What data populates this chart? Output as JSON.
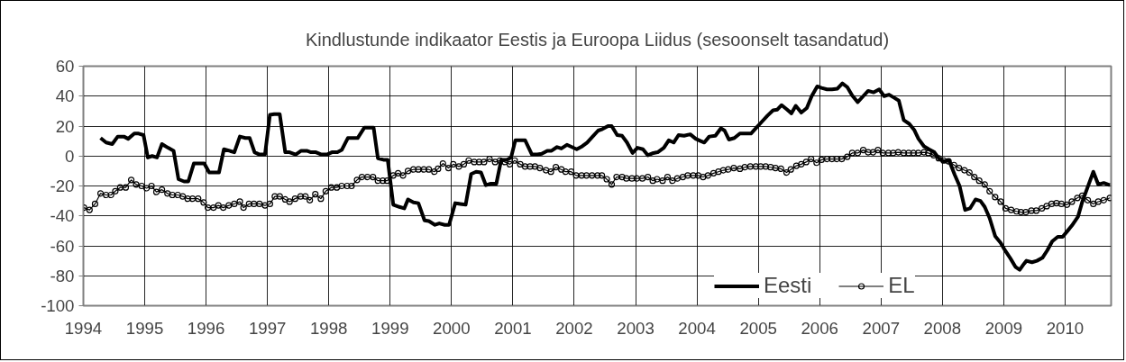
{
  "chart_data": {
    "type": "line",
    "title": "Kindlustunde indikaator Eestis ja Euroopa Liidus (sesoonselt tasandatud)",
    "xlim": [
      1994,
      2010.75
    ],
    "xticks": [
      1994,
      1995,
      1996,
      1997,
      1998,
      1999,
      2000,
      2001,
      2002,
      2003,
      2004,
      2005,
      2006,
      2007,
      2008,
      2009,
      2010
    ],
    "ylim": [
      -100,
      60
    ],
    "yticks": [
      -100,
      -80,
      -60,
      -40,
      -20,
      0,
      20,
      40,
      60
    ],
    "grid": true,
    "legend": "bottom right",
    "series": [
      {
        "name": "Eesti",
        "color": "#000000",
        "marker": "none",
        "x": [
          1994.28,
          1994.37,
          1994.47,
          1994.56,
          1994.66,
          1994.73,
          1994.83,
          1994.9,
          1994.98,
          1995.05,
          1995.12,
          1995.2,
          1995.28,
          1995.38,
          1995.47,
          1995.55,
          1995.64,
          1995.71,
          1995.8,
          1995.9,
          1995.97,
          1996.05,
          1996.13,
          1996.21,
          1996.29,
          1996.38,
          1996.46,
          1996.55,
          1996.64,
          1996.71,
          1996.79,
          1996.87,
          1996.96,
          1997.04,
          1997.11,
          1997.2,
          1997.29,
          1997.36,
          1997.46,
          1997.55,
          1997.64,
          1997.71,
          1997.79,
          1997.88,
          1997.97,
          1998.05,
          1998.14,
          1998.21,
          1998.31,
          1998.38,
          1998.47,
          1998.58,
          1998.66,
          1998.73,
          1998.8,
          1998.89,
          1998.96,
          1999.05,
          1999.15,
          1999.23,
          1999.29,
          1999.38,
          1999.46,
          1999.56,
          1999.63,
          1999.73,
          1999.8,
          1999.89,
          1999.96,
          2000.06,
          2000.14,
          2000.23,
          2000.32,
          2000.4,
          2000.48,
          2000.56,
          2000.64,
          2000.73,
          2000.81,
          2000.9,
          2000.97,
          2001.04,
          2001.12,
          2001.2,
          2001.31,
          2001.4,
          2001.47,
          2001.56,
          2001.63,
          2001.72,
          2001.79,
          2001.88,
          2001.96,
          2002.04,
          2002.13,
          2002.21,
          2002.3,
          2002.39,
          2002.46,
          2002.55,
          2002.61,
          2002.7,
          2002.78,
          2002.86,
          2002.95,
          2003.03,
          2003.12,
          2003.2,
          2003.29,
          2003.36,
          2003.46,
          2003.54,
          2003.62,
          2003.7,
          2003.79,
          2003.89,
          2003.98,
          2004.06,
          2004.12,
          2004.2,
          2004.3,
          2004.39,
          2004.45,
          2004.52,
          2004.61,
          2004.7,
          2004.79,
          2004.88,
          2004.97,
          2005.06,
          2005.15,
          2005.24,
          2005.31,
          2005.38,
          2005.47,
          2005.54,
          2005.61,
          2005.7,
          2005.79,
          2005.87,
          2005.96,
          2006.03,
          2006.12,
          2006.2,
          2006.29,
          2006.37,
          2006.45,
          2006.53,
          2006.62,
          2006.71,
          2006.79,
          2006.88,
          2006.97,
          2007.05,
          2007.13,
          2007.21,
          2007.29,
          2007.37,
          2007.46,
          2007.54,
          2007.61,
          2007.7,
          2007.78,
          2007.87,
          2007.95,
          2008.02,
          2008.11,
          2008.2,
          2008.28,
          2008.37,
          2008.45,
          2008.54,
          2008.62,
          2008.69,
          2008.77,
          2008.86,
          2008.95,
          2009.02,
          2009.11,
          2009.19,
          2009.26,
          2009.33,
          2009.37,
          2009.46,
          2009.54,
          2009.63,
          2009.71,
          2009.79,
          2009.88,
          2009.96,
          2010.04,
          2010.11,
          2010.21,
          2010.28,
          2010.37,
          2010.46,
          2010.54,
          2010.63,
          2010.73
        ],
        "values": [
          12,
          9,
          8,
          13,
          13,
          11.5,
          15,
          15,
          14,
          -1,
          0,
          -1,
          8,
          5.5,
          3.5,
          -15.5,
          -17,
          -17,
          -5,
          -5,
          -5,
          -11,
          -11,
          -11,
          4.5,
          3.5,
          2.5,
          13,
          12,
          12,
          2.5,
          1,
          1,
          27.5,
          28,
          28,
          2.5,
          2.5,
          1,
          3.5,
          3.5,
          2.5,
          2.5,
          1,
          1,
          2.5,
          2.5,
          4,
          12,
          12,
          12,
          19,
          19,
          19,
          -1.5,
          -2.5,
          -2.5,
          -32.5,
          -34,
          -35,
          -29,
          -31,
          -31.5,
          -43,
          -43.5,
          -46,
          -45,
          -46,
          -46,
          -31.5,
          -32,
          -32.5,
          -12,
          -10.5,
          -11,
          -19.5,
          -18.5,
          -18.5,
          -2.5,
          -2.5,
          -1,
          10.5,
          10.5,
          10.5,
          1,
          1,
          1.5,
          3.5,
          3.5,
          6,
          5,
          7.5,
          6,
          4.5,
          6.5,
          9,
          13,
          17,
          18,
          20,
          20,
          14,
          13.5,
          9,
          2,
          5.5,
          4.5,
          0.5,
          2,
          2.5,
          5.5,
          10.5,
          9,
          14,
          13.5,
          14.5,
          11.5,
          10,
          9,
          13,
          13.5,
          18.5,
          17,
          11,
          12,
          15,
          15,
          15,
          19,
          23,
          27,
          30.5,
          31,
          34,
          31,
          28.5,
          33.5,
          29,
          32,
          40,
          46.5,
          45.5,
          44.5,
          44.5,
          45,
          48.5,
          46,
          40.5,
          36,
          40,
          43.5,
          42.5,
          44.5,
          40,
          41,
          39,
          37,
          24,
          21.5,
          17.5,
          11.5,
          6.5,
          4.5,
          2.5,
          -2,
          -3.5,
          -3,
          -12.5,
          -20,
          -36,
          -35,
          -29,
          -30,
          -34,
          -41.5,
          -53.5,
          -58,
          -63,
          -68.5,
          -74,
          -76,
          -72,
          -70,
          -71,
          -70,
          -68,
          -63,
          -57,
          -54,
          -54,
          -50,
          -46.5,
          -40.5,
          -30.5,
          -20.5,
          -10.5,
          -19,
          -18,
          -19.5
        ]
      },
      {
        "name": "EL",
        "color": "#000000",
        "marker": "circle",
        "x": [
          1994.01,
          1994.1,
          1994.19,
          1994.28,
          1994.37,
          1994.45,
          1994.52,
          1994.6,
          1994.69,
          1994.78,
          1994.86,
          1994.95,
          1995.03,
          1995.11,
          1995.19,
          1995.28,
          1995.37,
          1995.45,
          1995.54,
          1995.62,
          1995.7,
          1995.78,
          1995.87,
          1995.96,
          1996.03,
          1996.12,
          1996.2,
          1996.28,
          1996.37,
          1996.46,
          1996.55,
          1996.61,
          1996.7,
          1996.78,
          1996.87,
          1996.96,
          1997.04,
          1997.12,
          1997.2,
          1997.29,
          1997.36,
          1997.45,
          1997.54,
          1997.62,
          1997.69,
          1997.78,
          1997.87,
          1997.95,
          1998.04,
          1998.13,
          1998.21,
          1998.3,
          1998.37,
          1998.46,
          1998.54,
          1998.63,
          1998.72,
          1998.8,
          1998.88,
          1998.95,
          1999.05,
          1999.13,
          1999.21,
          1999.29,
          1999.38,
          1999.46,
          1999.55,
          1999.63,
          1999.72,
          1999.78,
          1999.86,
          1999.95,
          2000.03,
          2000.12,
          2000.2,
          2000.28,
          2000.37,
          2000.45,
          2000.53,
          2000.62,
          2000.71,
          2000.79,
          2000.87,
          2000.95,
          2001.03,
          2001.12,
          2001.2,
          2001.28,
          2001.36,
          2001.44,
          2001.54,
          2001.62,
          2001.7,
          2001.79,
          2001.86,
          2001.95,
          2002.03,
          2002.12,
          2002.2,
          2002.29,
          2002.38,
          2002.45,
          2002.53,
          2002.61,
          2002.69,
          2002.78,
          2002.85,
          2002.94,
          2003.02,
          2003.11,
          2003.2,
          2003.28,
          2003.35,
          2003.44,
          2003.52,
          2003.6,
          2003.68,
          2003.77,
          2003.85,
          2003.94,
          2004.02,
          2004.1,
          2004.18,
          2004.27,
          2004.35,
          2004.43,
          2004.51,
          2004.6,
          2004.7,
          2004.78,
          2004.87,
          2004.96,
          2005.04,
          2005.12,
          2005.2,
          2005.28,
          2005.37,
          2005.46,
          2005.53,
          2005.62,
          2005.7,
          2005.78,
          2005.86,
          2005.95,
          2006.03,
          2006.12,
          2006.2,
          2006.28,
          2006.36,
          2006.45,
          2006.53,
          2006.62,
          2006.71,
          2006.79,
          2006.87,
          2006.95,
          2007.03,
          2007.12,
          2007.2,
          2007.28,
          2007.37,
          2007.45,
          2007.53,
          2007.61,
          2007.7,
          2007.77,
          2007.86,
          2007.94,
          2008.02,
          2008.1,
          2008.19,
          2008.27,
          2008.36,
          2008.44,
          2008.52,
          2008.6,
          2008.69,
          2008.77,
          2008.86,
          2008.95,
          2009.03,
          2009.12,
          2009.21,
          2009.28,
          2009.36,
          2009.45,
          2009.53,
          2009.62,
          2009.7,
          2009.78,
          2009.86,
          2009.94,
          2010.03,
          2010.11,
          2010.2,
          2010.28,
          2010.37,
          2010.46,
          2010.54,
          2010.63,
          2010.73
        ],
        "values": [
          -34.5,
          -36,
          -32,
          -25,
          -26,
          -26,
          -23.5,
          -21,
          -21,
          -16,
          -19,
          -20,
          -21.5,
          -20,
          -24,
          -22.5,
          -25,
          -26,
          -26,
          -27,
          -28.5,
          -28.5,
          -28.5,
          -31,
          -34.5,
          -34.5,
          -33,
          -34.5,
          -33,
          -32,
          -30.5,
          -34.5,
          -32,
          -32,
          -32,
          -33,
          -32,
          -27,
          -27,
          -29,
          -30.5,
          -28.5,
          -27,
          -27,
          -29.5,
          -25.5,
          -28.5,
          -23.5,
          -21,
          -21,
          -20,
          -20,
          -20,
          -16,
          -14,
          -14,
          -14,
          -16.5,
          -16.5,
          -16.5,
          -13,
          -11.5,
          -13,
          -10,
          -9,
          -9,
          -9,
          -9,
          -10.5,
          -8.5,
          -5,
          -8,
          -5.5,
          -7,
          -5.5,
          -3,
          -4,
          -4,
          -4,
          -2,
          -4,
          -3,
          -4,
          -5.5,
          -3,
          -5.5,
          -7,
          -7,
          -7,
          -8,
          -9.5,
          -10.5,
          -7.5,
          -9,
          -10.5,
          -10.5,
          -13,
          -13,
          -13,
          -13,
          -13,
          -13,
          -15.5,
          -19,
          -14,
          -14,
          -15,
          -15,
          -15,
          -15,
          -14,
          -16.5,
          -15.5,
          -16.5,
          -14,
          -16.5,
          -15,
          -14,
          -13,
          -13,
          -13,
          -14,
          -13,
          -11.5,
          -10.5,
          -9.5,
          -9,
          -8,
          -8.5,
          -7.5,
          -7,
          -7,
          -7,
          -7,
          -7.5,
          -8,
          -8.5,
          -11,
          -9,
          -6.5,
          -5.5,
          -4,
          -2,
          -4.5,
          -2.5,
          -2,
          -2,
          -2,
          -2,
          -0.5,
          2,
          2,
          4,
          2.5,
          2.5,
          4,
          2,
          2,
          2,
          2.5,
          2,
          2,
          2,
          2,
          2.5,
          2,
          0.5,
          -1.5,
          -3,
          -3.5,
          -6,
          -8,
          -9.5,
          -11,
          -14,
          -16.5,
          -19,
          -23.5,
          -27.5,
          -30.5,
          -35,
          -36,
          -37,
          -37.5,
          -37.5,
          -36.5,
          -36.5,
          -35,
          -33.5,
          -32,
          -31.5,
          -32,
          -32.5,
          -30.5,
          -28,
          -26.5,
          -29.5,
          -32,
          -30.5,
          -29.5,
          -28
        ]
      }
    ]
  }
}
